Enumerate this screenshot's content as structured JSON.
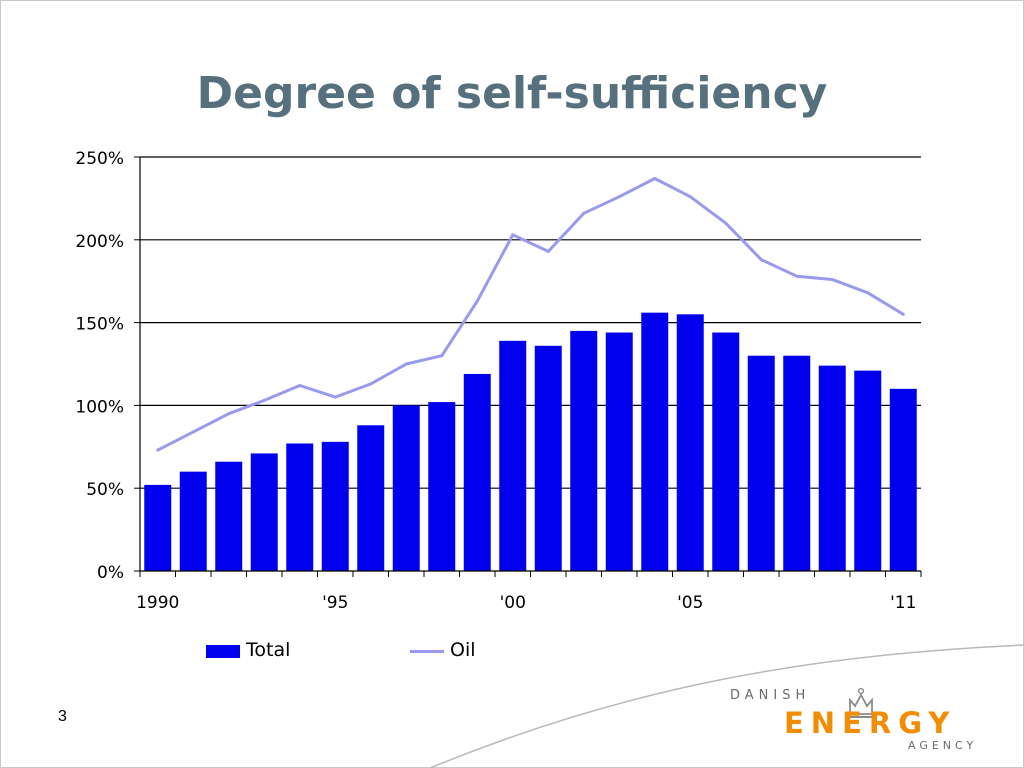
{
  "slide": {
    "title": "Degree of self-sufficiency",
    "number": "3"
  },
  "logo": {
    "line1": "DANISH",
    "line2": "ENERGY",
    "line3": "AGENCY",
    "text_color": "#f28c00"
  },
  "legend": {
    "total_label": "Total",
    "oil_label": "Oil"
  },
  "chart_data": {
    "type": "bar",
    "title": "",
    "xlabel": "",
    "ylabel": "",
    "ylim": [
      0,
      250
    ],
    "y_unit": "%",
    "y_ticks": [
      "0%",
      "50%",
      "100%",
      "150%",
      "200%",
      "250%"
    ],
    "categories": [
      "1990",
      "1991",
      "1992",
      "1993",
      "1994",
      "1995",
      "1996",
      "1997",
      "1998",
      "1999",
      "2000",
      "2001",
      "2002",
      "2003",
      "2004",
      "2005",
      "2006",
      "2007",
      "2008",
      "2009",
      "2010",
      "2011"
    ],
    "x_tick_labels": [
      {
        "index": 0,
        "label": "1990"
      },
      {
        "index": 5,
        "label": "'95"
      },
      {
        "index": 10,
        "label": "'00"
      },
      {
        "index": 15,
        "label": "'05"
      },
      {
        "index": 21,
        "label": "'11"
      }
    ],
    "grid": true,
    "legend_position": "bottom",
    "series": [
      {
        "name": "Total",
        "type": "bar",
        "color": "#0000ee",
        "values": [
          52,
          60,
          66,
          71,
          77,
          78,
          88,
          100,
          102,
          119,
          139,
          136,
          145,
          144,
          156,
          155,
          144,
          130,
          130,
          124,
          121,
          110
        ]
      },
      {
        "name": "Oil",
        "type": "line",
        "color": "#9999ee",
        "values": [
          73,
          84,
          95,
          103,
          112,
          105,
          113,
          125,
          130,
          163,
          203,
          193,
          216,
          226,
          237,
          226,
          210,
          188,
          178,
          176,
          168,
          155
        ]
      }
    ]
  }
}
